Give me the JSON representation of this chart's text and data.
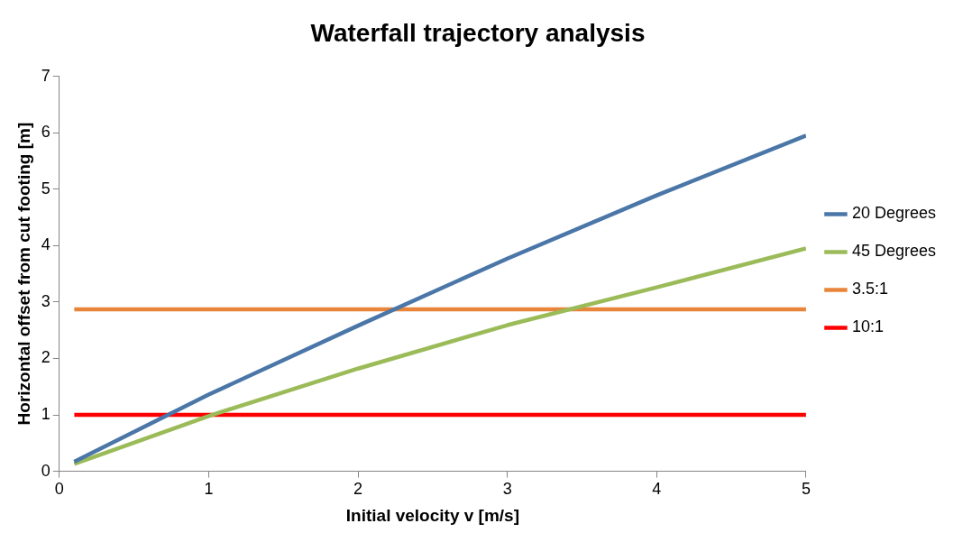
{
  "chart_data": {
    "type": "line",
    "title": "Waterfall trajectory analysis",
    "xlabel": "Initial velocity v [m/s]",
    "ylabel": "Horizontal offset from cut footing [m]",
    "xlim": [
      0,
      5
    ],
    "xticks": [
      0,
      1,
      2,
      3,
      4,
      5
    ],
    "ylim": [
      0,
      7
    ],
    "yticks": [
      0,
      1,
      2,
      3,
      4,
      5,
      6,
      7
    ],
    "grid": false,
    "legend": "right",
    "marker": "none",
    "line_style": "solid",
    "series": [
      {
        "name": "20 Degrees",
        "color": "#4a76a8",
        "x": [
          0.1,
          1,
          2,
          3,
          4,
          5
        ],
        "values": [
          0.17,
          1.36,
          2.58,
          3.77,
          4.89,
          5.95
        ]
      },
      {
        "name": "45 Degrees",
        "color": "#9bbb59",
        "x": [
          0.1,
          1,
          2,
          3,
          4,
          5
        ],
        "values": [
          0.13,
          0.98,
          1.82,
          2.59,
          3.26,
          3.95
        ]
      },
      {
        "name": "3.5:1",
        "color": "#e8853a",
        "x": [
          0.1,
          5
        ],
        "values": [
          2.87,
          2.87
        ]
      },
      {
        "name": "10:1",
        "color": "#ff0000",
        "x": [
          0.1,
          5
        ],
        "values": [
          1,
          1
        ]
      }
    ]
  }
}
